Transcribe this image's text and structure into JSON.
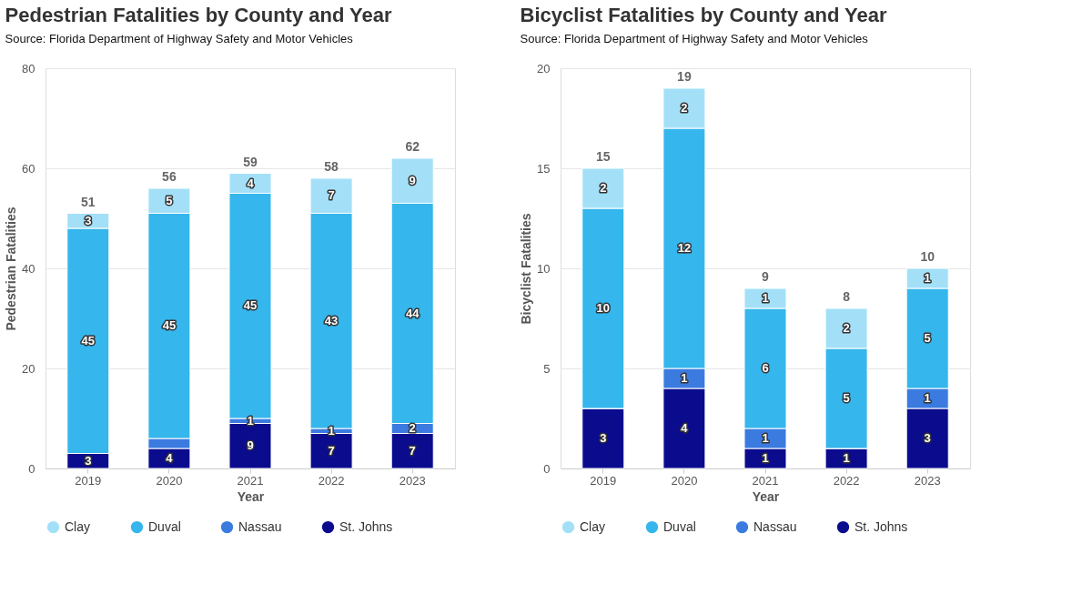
{
  "chart_data": [
    {
      "type": "bar",
      "title": "Pedestrian Fatalities by County and Year",
      "annotations": [
        "Source: Florida Department of Highway Safety and Motor Vehicles"
      ],
      "xlabel": "Year",
      "ylabel": "Pedestrian Fatalities",
      "categories": [
        "2019",
        "2020",
        "2021",
        "2022",
        "2023"
      ],
      "stacked": true,
      "ylim": [
        0,
        80
      ],
      "yticks": [
        0,
        20,
        40,
        60,
        80
      ],
      "grid": "y",
      "legend": "bottom",
      "series": [
        {
          "name": "St. Johns",
          "color": "#0b0b8e",
          "values": [
            3,
            4,
            9,
            7,
            7
          ],
          "value_labels": [
            "3",
            "4",
            "9",
            "7",
            "7"
          ]
        },
        {
          "name": "Nassau",
          "color": "#3b7be0",
          "values": [
            0,
            2,
            1,
            1,
            2
          ],
          "value_labels": [
            null,
            null,
            "1",
            "1",
            "2"
          ]
        },
        {
          "name": "Duval",
          "color": "#35b6ec",
          "values": [
            45,
            45,
            45,
            43,
            44
          ],
          "value_labels": [
            "45",
            "45",
            "45",
            "43",
            "44"
          ]
        },
        {
          "name": "Clay",
          "color": "#a3e0f8",
          "values": [
            3,
            5,
            4,
            7,
            9
          ],
          "value_labels": [
            "3",
            "5",
            "4",
            "7",
            "9"
          ]
        }
      ],
      "totals": [
        "51",
        "56",
        "59",
        "58",
        "62"
      ]
    },
    {
      "type": "bar",
      "title": "Bicyclist Fatalities by County and Year",
      "annotations": [
        "Source: Florida Department of Highway Safety and Motor Vehicles"
      ],
      "xlabel": "Year",
      "ylabel": "Bicyclist Fatalities",
      "categories": [
        "2019",
        "2020",
        "2021",
        "2022",
        "2023"
      ],
      "stacked": true,
      "ylim": [
        0,
        20
      ],
      "yticks": [
        0,
        5,
        10,
        15,
        20
      ],
      "grid": "y",
      "legend": "bottom",
      "series": [
        {
          "name": "St. Johns",
          "color": "#0b0b8e",
          "values": [
            3,
            4,
            1,
            1,
            3
          ],
          "value_labels": [
            "3",
            "4",
            "1",
            "1",
            "3"
          ]
        },
        {
          "name": "Nassau",
          "color": "#3b7be0",
          "values": [
            0,
            1,
            1,
            0,
            1
          ],
          "value_labels": [
            null,
            "1",
            "1",
            null,
            "1"
          ]
        },
        {
          "name": "Duval",
          "color": "#35b6ec",
          "values": [
            10,
            12,
            6,
            5,
            5
          ],
          "value_labels": [
            "10",
            "12",
            "6",
            "5",
            "5"
          ]
        },
        {
          "name": "Clay",
          "color": "#a3e0f8",
          "values": [
            2,
            2,
            1,
            2,
            1
          ],
          "value_labels": [
            "2",
            "2",
            "1",
            "2",
            "1"
          ]
        }
      ],
      "totals": [
        "15",
        "19",
        "9",
        "8",
        "10"
      ]
    }
  ]
}
